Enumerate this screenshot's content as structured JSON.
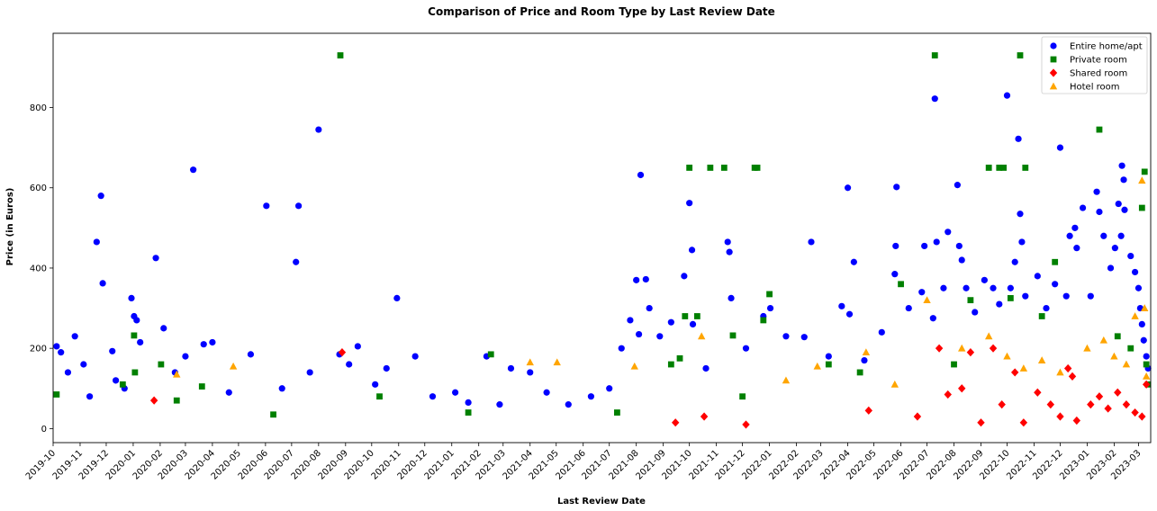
{
  "chart_data": {
    "type": "scatter",
    "title": "Comparison of Price and Room Type by Last Review Date",
    "xlabel": "Last Review Date",
    "ylabel": "Price (in Euros)",
    "xlim": [
      "2019-10-01",
      "2023-03-15"
    ],
    "ylim": [
      -35,
      985
    ],
    "y_ticks": [
      0,
      200,
      400,
      600,
      800
    ],
    "x_ticks": [
      "2019-10",
      "2019-11",
      "2019-12",
      "2020-01",
      "2020-02",
      "2020-03",
      "2020-04",
      "2020-05",
      "2020-06",
      "2020-07",
      "2020-08",
      "2020-09",
      "2020-10",
      "2020-11",
      "2020-12",
      "2021-01",
      "2021-02",
      "2021-03",
      "2021-04",
      "2021-05",
      "2021-06",
      "2021-07",
      "2021-08",
      "2021-09",
      "2021-10",
      "2021-11",
      "2021-12",
      "2022-01",
      "2022-02",
      "2022-03",
      "2022-04",
      "2022-05",
      "2022-06",
      "2022-07",
      "2022-08",
      "2022-09",
      "2022-10",
      "2022-11",
      "2022-12",
      "2023-01",
      "2023-02",
      "2023-03"
    ],
    "grid": false,
    "legend_position": "top-right",
    "series": [
      {
        "name": "Entire home/apt",
        "marker": "circle",
        "color": "#0000ff",
        "points": [
          [
            "2019-10-05",
            205
          ],
          [
            "2019-10-10",
            190
          ],
          [
            "2019-10-18",
            140
          ],
          [
            "2019-10-26",
            230
          ],
          [
            "2019-11-05",
            160
          ],
          [
            "2019-11-12",
            80
          ],
          [
            "2019-11-20",
            465
          ],
          [
            "2019-11-25",
            580
          ],
          [
            "2019-11-27",
            362
          ],
          [
            "2019-12-08",
            193
          ],
          [
            "2019-12-12",
            120
          ],
          [
            "2019-12-22",
            100
          ],
          [
            "2019-12-30",
            325
          ],
          [
            "2020-01-02",
            280
          ],
          [
            "2020-01-05",
            270
          ],
          [
            "2020-01-09",
            215
          ],
          [
            "2020-01-27",
            425
          ],
          [
            "2020-02-05",
            250
          ],
          [
            "2020-02-18",
            140
          ],
          [
            "2020-03-01",
            180
          ],
          [
            "2020-03-10",
            645
          ],
          [
            "2020-03-22",
            210
          ],
          [
            "2020-04-01",
            215
          ],
          [
            "2020-04-20",
            90
          ],
          [
            "2020-05-15",
            185
          ],
          [
            "2020-06-02",
            555
          ],
          [
            "2020-06-20",
            100
          ],
          [
            "2020-07-06",
            415
          ],
          [
            "2020-07-09",
            555
          ],
          [
            "2020-07-22",
            140
          ],
          [
            "2020-08-01",
            745
          ],
          [
            "2020-08-25",
            185
          ],
          [
            "2020-09-05",
            160
          ],
          [
            "2020-09-15",
            205
          ],
          [
            "2020-10-05",
            110
          ],
          [
            "2020-10-18",
            150
          ],
          [
            "2020-10-30",
            325
          ],
          [
            "2020-11-20",
            180
          ],
          [
            "2020-12-10",
            80
          ],
          [
            "2021-01-05",
            90
          ],
          [
            "2021-01-20",
            65
          ],
          [
            "2021-02-10",
            180
          ],
          [
            "2021-02-25",
            60
          ],
          [
            "2021-03-10",
            150
          ],
          [
            "2021-04-01",
            140
          ],
          [
            "2021-04-20",
            90
          ],
          [
            "2021-05-15",
            60
          ],
          [
            "2021-06-10",
            80
          ],
          [
            "2021-07-01",
            100
          ],
          [
            "2021-07-15",
            200
          ],
          [
            "2021-07-25",
            270
          ],
          [
            "2021-08-01",
            370
          ],
          [
            "2021-08-04",
            235
          ],
          [
            "2021-08-06",
            632
          ],
          [
            "2021-08-12",
            372
          ],
          [
            "2021-08-16",
            300
          ],
          [
            "2021-08-28",
            230
          ],
          [
            "2021-09-10",
            265
          ],
          [
            "2021-09-25",
            380
          ],
          [
            "2021-10-01",
            562
          ],
          [
            "2021-10-04",
            445
          ],
          [
            "2021-10-05",
            260
          ],
          [
            "2021-10-20",
            150
          ],
          [
            "2021-11-14",
            465
          ],
          [
            "2021-11-16",
            440
          ],
          [
            "2021-11-18",
            325
          ],
          [
            "2021-12-05",
            200
          ],
          [
            "2021-12-25",
            280
          ],
          [
            "2022-01-02",
            300
          ],
          [
            "2022-01-20",
            230
          ],
          [
            "2022-02-10",
            228
          ],
          [
            "2022-02-18",
            465
          ],
          [
            "2022-03-10",
            180
          ],
          [
            "2022-03-25",
            305
          ],
          [
            "2022-04-01",
            600
          ],
          [
            "2022-04-03",
            285
          ],
          [
            "2022-04-08",
            415
          ],
          [
            "2022-04-20",
            170
          ],
          [
            "2022-05-10",
            240
          ],
          [
            "2022-05-25",
            385
          ],
          [
            "2022-05-26",
            455
          ],
          [
            "2022-05-27",
            602
          ],
          [
            "2022-06-10",
            300
          ],
          [
            "2022-06-25",
            340
          ],
          [
            "2022-06-28",
            455
          ],
          [
            "2022-07-08",
            275
          ],
          [
            "2022-07-10",
            822
          ],
          [
            "2022-07-12",
            465
          ],
          [
            "2022-07-20",
            350
          ],
          [
            "2022-07-25",
            490
          ],
          [
            "2022-08-05",
            607
          ],
          [
            "2022-08-07",
            455
          ],
          [
            "2022-08-10",
            420
          ],
          [
            "2022-08-15",
            350
          ],
          [
            "2022-08-25",
            290
          ],
          [
            "2022-09-05",
            370
          ],
          [
            "2022-09-15",
            350
          ],
          [
            "2022-09-22",
            310
          ],
          [
            "2022-10-01",
            830
          ],
          [
            "2022-10-05",
            350
          ],
          [
            "2022-10-10",
            415
          ],
          [
            "2022-10-14",
            722
          ],
          [
            "2022-10-16",
            535
          ],
          [
            "2022-10-18",
            465
          ],
          [
            "2022-10-22",
            330
          ],
          [
            "2022-11-05",
            380
          ],
          [
            "2022-11-15",
            300
          ],
          [
            "2022-11-25",
            360
          ],
          [
            "2022-12-01",
            700
          ],
          [
            "2022-12-08",
            330
          ],
          [
            "2022-12-12",
            480
          ],
          [
            "2022-12-18",
            500
          ],
          [
            "2022-12-20",
            450
          ],
          [
            "2022-12-27",
            550
          ],
          [
            "2023-01-05",
            330
          ],
          [
            "2023-01-12",
            590
          ],
          [
            "2023-01-15",
            540
          ],
          [
            "2023-01-20",
            480
          ],
          [
            "2023-01-28",
            400
          ],
          [
            "2023-02-02",
            450
          ],
          [
            "2023-02-06",
            560
          ],
          [
            "2023-02-09",
            480
          ],
          [
            "2023-02-10",
            655
          ],
          [
            "2023-02-12",
            620
          ],
          [
            "2023-02-13",
            545
          ],
          [
            "2023-02-20",
            430
          ],
          [
            "2023-02-25",
            390
          ],
          [
            "2023-03-01",
            350
          ],
          [
            "2023-03-03",
            300
          ],
          [
            "2023-03-05",
            260
          ],
          [
            "2023-03-07",
            220
          ],
          [
            "2023-03-10",
            180
          ],
          [
            "2023-03-12",
            150
          ]
        ]
      },
      {
        "name": "Private room",
        "marker": "square",
        "color": "#008000",
        "points": [
          [
            "2019-10-05",
            85
          ],
          [
            "2019-12-20",
            110
          ],
          [
            "2020-01-02",
            232
          ],
          [
            "2020-01-03",
            140
          ],
          [
            "2020-02-02",
            160
          ],
          [
            "2020-02-20",
            70
          ],
          [
            "2020-03-20",
            105
          ],
          [
            "2020-06-10",
            35
          ],
          [
            "2020-08-26",
            930
          ],
          [
            "2020-10-10",
            80
          ],
          [
            "2021-01-20",
            40
          ],
          [
            "2021-02-15",
            185
          ],
          [
            "2021-07-10",
            40
          ],
          [
            "2021-09-10",
            160
          ],
          [
            "2021-09-20",
            175
          ],
          [
            "2021-09-26",
            280
          ],
          [
            "2021-10-01",
            650
          ],
          [
            "2021-10-10",
            280
          ],
          [
            "2021-10-25",
            650
          ],
          [
            "2021-11-10",
            650
          ],
          [
            "2021-11-20",
            232
          ],
          [
            "2021-12-01",
            80
          ],
          [
            "2021-12-15",
            650
          ],
          [
            "2021-12-18",
            650
          ],
          [
            "2021-12-25",
            270
          ],
          [
            "2022-01-01",
            335
          ],
          [
            "2022-03-10",
            160
          ],
          [
            "2022-04-15",
            140
          ],
          [
            "2022-06-01",
            360
          ],
          [
            "2022-07-10",
            930
          ],
          [
            "2022-08-01",
            160
          ],
          [
            "2022-08-20",
            320
          ],
          [
            "2022-09-10",
            650
          ],
          [
            "2022-09-22",
            650
          ],
          [
            "2022-09-27",
            650
          ],
          [
            "2022-10-05",
            325
          ],
          [
            "2022-10-16",
            930
          ],
          [
            "2022-10-22",
            650
          ],
          [
            "2022-11-10",
            280
          ],
          [
            "2022-11-25",
            415
          ],
          [
            "2023-01-15",
            745
          ],
          [
            "2023-02-05",
            230
          ],
          [
            "2023-02-20",
            200
          ],
          [
            "2023-03-05",
            550
          ],
          [
            "2023-03-08",
            640
          ],
          [
            "2023-03-10",
            160
          ],
          [
            "2023-03-12",
            110
          ]
        ]
      },
      {
        "name": "Shared room",
        "marker": "diamond",
        "color": "#ff0000",
        "points": [
          [
            "2020-01-25",
            70
          ],
          [
            "2020-08-28",
            190
          ],
          [
            "2021-09-15",
            15
          ],
          [
            "2021-10-18",
            30
          ],
          [
            "2021-12-05",
            10
          ],
          [
            "2022-04-25",
            45
          ],
          [
            "2022-06-20",
            30
          ],
          [
            "2022-07-15",
            200
          ],
          [
            "2022-07-25",
            85
          ],
          [
            "2022-08-10",
            100
          ],
          [
            "2022-08-20",
            190
          ],
          [
            "2022-09-01",
            15
          ],
          [
            "2022-09-15",
            200
          ],
          [
            "2022-09-25",
            60
          ],
          [
            "2022-10-10",
            140
          ],
          [
            "2022-10-20",
            15
          ],
          [
            "2022-11-05",
            90
          ],
          [
            "2022-11-20",
            60
          ],
          [
            "2022-12-01",
            30
          ],
          [
            "2022-12-10",
            150
          ],
          [
            "2022-12-15",
            130
          ],
          [
            "2022-12-20",
            20
          ],
          [
            "2023-01-05",
            60
          ],
          [
            "2023-01-15",
            80
          ],
          [
            "2023-01-25",
            50
          ],
          [
            "2023-02-05",
            90
          ],
          [
            "2023-02-15",
            60
          ],
          [
            "2023-02-25",
            40
          ],
          [
            "2023-03-05",
            30
          ],
          [
            "2023-03-10",
            110
          ]
        ]
      },
      {
        "name": "Hotel room",
        "marker": "triangle",
        "color": "#ffa500",
        "points": [
          [
            "2020-02-20",
            135
          ],
          [
            "2020-04-25",
            155
          ],
          [
            "2021-04-01",
            165
          ],
          [
            "2021-05-02",
            165
          ],
          [
            "2021-07-30",
            155
          ],
          [
            "2021-10-15",
            230
          ],
          [
            "2022-01-20",
            120
          ],
          [
            "2022-02-25",
            155
          ],
          [
            "2022-04-22",
            190
          ],
          [
            "2022-05-25",
            110
          ],
          [
            "2022-07-01",
            320
          ],
          [
            "2022-08-10",
            200
          ],
          [
            "2022-09-10",
            230
          ],
          [
            "2022-10-01",
            180
          ],
          [
            "2022-10-20",
            150
          ],
          [
            "2022-11-10",
            170
          ],
          [
            "2022-12-01",
            140
          ],
          [
            "2023-01-01",
            200
          ],
          [
            "2023-01-20",
            220
          ],
          [
            "2023-02-01",
            180
          ],
          [
            "2023-02-15",
            160
          ],
          [
            "2023-02-25",
            280
          ],
          [
            "2023-03-05",
            618
          ],
          [
            "2023-03-08",
            300
          ],
          [
            "2023-03-10",
            130
          ]
        ]
      }
    ]
  }
}
